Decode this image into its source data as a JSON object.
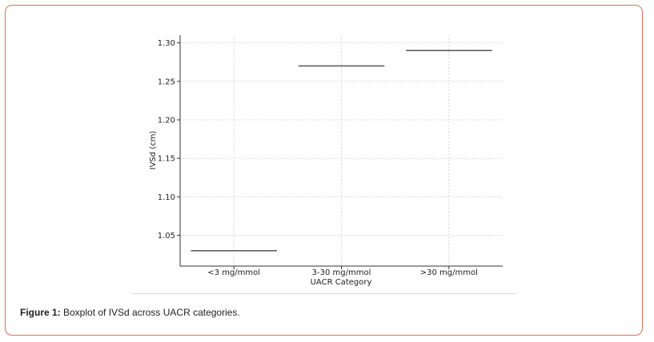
{
  "chart_data": {
    "type": "box",
    "categories": [
      "<3 mg/mmol",
      "3-30 mg/mmol",
      ">30 mg/mmol"
    ],
    "series": [
      {
        "values": [
          1.03,
          1.27,
          1.29
        ]
      }
    ],
    "xlabel": "UACR Category",
    "ylabel": "IVSd (cm)",
    "ylim": [
      1.01,
      1.31
    ],
    "yticks": [
      1.05,
      1.1,
      1.15,
      1.2,
      1.25,
      1.3
    ],
    "ytick_labels": [
      "1.05",
      "1.10",
      "1.15",
      "1.20",
      "1.25",
      "1.30"
    ],
    "grid": true,
    "line_color": "#555555",
    "grid_color": "#d0d0d0"
  },
  "caption": {
    "label": "Figure 1:",
    "text": " Boxplot of IVSd across UACR categories."
  },
  "colors": {
    "frame_border": "#e06b5f"
  }
}
